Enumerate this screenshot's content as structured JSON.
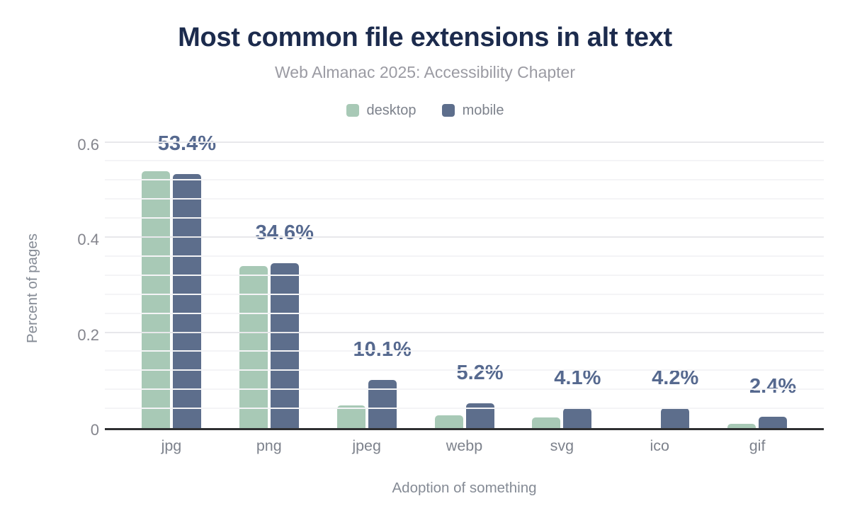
{
  "chart_data": {
    "type": "bar",
    "title": "Most common file extensions in alt text",
    "subtitle": "Web Almanac 2025: Accessibility Chapter",
    "xlabel": "Adoption of something",
    "ylabel": "Percent of pages",
    "categories": [
      "jpg",
      "png",
      "jpeg",
      "webp",
      "svg",
      "ico",
      "gif"
    ],
    "series": [
      {
        "name": "desktop",
        "color": "#a8c9b6",
        "values": [
          0.54,
          0.341,
          0.048,
          0.027,
          0.023,
          0,
          0.009
        ]
      },
      {
        "name": "mobile",
        "color": "#5d6e8c",
        "values": [
          0.534,
          0.346,
          0.101,
          0.052,
          0.041,
          0.042,
          0.024
        ]
      }
    ],
    "bar_labels": [
      "53.4%",
      "34.6%",
      "10.1%",
      "5.2%",
      "4.1%",
      "4.2%",
      "2.4%"
    ],
    "bar_labels_series": "mobile",
    "y_ticks": [
      0,
      0.2,
      0.4,
      0.6
    ],
    "y_tick_labels": [
      "0",
      "0.2",
      "0.4",
      "0.6"
    ],
    "ylim": [
      0,
      0.632
    ],
    "grid_step": 0.04,
    "grid": "on",
    "legend_position": "top"
  },
  "colors": {
    "title": "#1c2b4d",
    "subtitle": "#9b9ba3",
    "axis_text": "#858b95",
    "tick_text": "#84858d",
    "bar_label": "#56698f",
    "grid_minor": "#f4f4f6",
    "grid_major": "#e8e8eb",
    "axis_line": "#2f3032",
    "background": "#ffffff"
  }
}
